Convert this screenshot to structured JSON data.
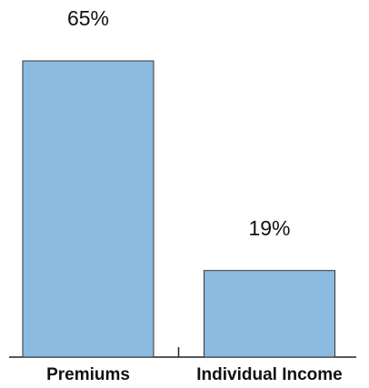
{
  "chart_data": {
    "type": "bar",
    "categories": [
      "Premiums",
      "Individual Income"
    ],
    "values": [
      65,
      19
    ],
    "value_labels": [
      "65%",
      "19%"
    ],
    "color": "#8cbbe2"
  }
}
